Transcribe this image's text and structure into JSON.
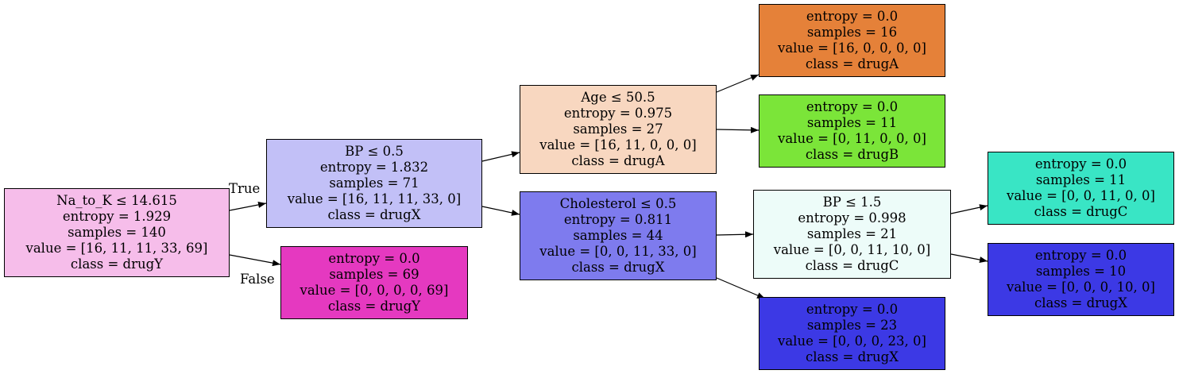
{
  "nodes": [
    {
      "id": "n0",
      "lines": [
        "Na_to_K ≤ 14.615",
        "entropy = 1.929",
        "samples = 140",
        "value = [16, 11, 11, 33, 69]",
        "class = drugY"
      ],
      "color": "#f6bdea"
    },
    {
      "id": "n1",
      "lines": [
        "BP ≤ 0.5",
        "entropy = 1.832",
        "samples = 71",
        "value = [16, 11, 11, 33, 0]",
        "class = drugX"
      ],
      "color": "#c2c0f7"
    },
    {
      "id": "n2",
      "lines": [
        "entropy = 0.0",
        "samples = 69",
        "value = [0, 0, 0, 0, 69]",
        "class = drugY"
      ],
      "color": "#e539c0"
    },
    {
      "id": "n3",
      "lines": [
        "Age ≤ 50.5",
        "entropy = 0.975",
        "samples = 27",
        "value = [16, 11, 0, 0, 0]",
        "class = drugA"
      ],
      "color": "#f8d7c0"
    },
    {
      "id": "n4",
      "lines": [
        "Cholesterol ≤ 0.5",
        "entropy = 0.811",
        "samples = 44",
        "value = [0, 0, 11, 33, 0]",
        "class = drugX"
      ],
      "color": "#7e7bee"
    },
    {
      "id": "n5",
      "lines": [
        "entropy = 0.0",
        "samples = 16",
        "value = [16, 0, 0, 0, 0]",
        "class = drugA"
      ],
      "color": "#e58139"
    },
    {
      "id": "n6",
      "lines": [
        "entropy = 0.0",
        "samples = 11",
        "value = [0, 11, 0, 0, 0]",
        "class = drugB"
      ],
      "color": "#7be539"
    },
    {
      "id": "n7",
      "lines": [
        "BP ≤ 1.5",
        "entropy = 0.998",
        "samples = 21",
        "value = [0, 0, 11, 10, 0]",
        "class = drugC"
      ],
      "color": "#edfcf9"
    },
    {
      "id": "n8",
      "lines": [
        "entropy = 0.0",
        "samples = 23",
        "value = [0, 0, 0, 23, 0]",
        "class = drugX"
      ],
      "color": "#3c39e5"
    },
    {
      "id": "n9",
      "lines": [
        "entropy = 0.0",
        "samples = 11",
        "value = [0, 0, 11, 0, 0]",
        "class = drugC"
      ],
      "color": "#39e5c5"
    },
    {
      "id": "n10",
      "lines": [
        "entropy = 0.0",
        "samples = 10",
        "value = [0, 0, 0, 10, 0]",
        "class = drugX"
      ],
      "color": "#3c39e5"
    }
  ],
  "edges": [
    {
      "from": "n0",
      "to": "n1",
      "label": "True"
    },
    {
      "from": "n0",
      "to": "n2",
      "label": "False"
    },
    {
      "from": "n1",
      "to": "n3"
    },
    {
      "from": "n1",
      "to": "n4"
    },
    {
      "from": "n3",
      "to": "n5"
    },
    {
      "from": "n3",
      "to": "n6"
    },
    {
      "from": "n4",
      "to": "n7"
    },
    {
      "from": "n4",
      "to": "n8"
    },
    {
      "from": "n7",
      "to": "n9"
    },
    {
      "from": "n7",
      "to": "n10"
    }
  ]
}
